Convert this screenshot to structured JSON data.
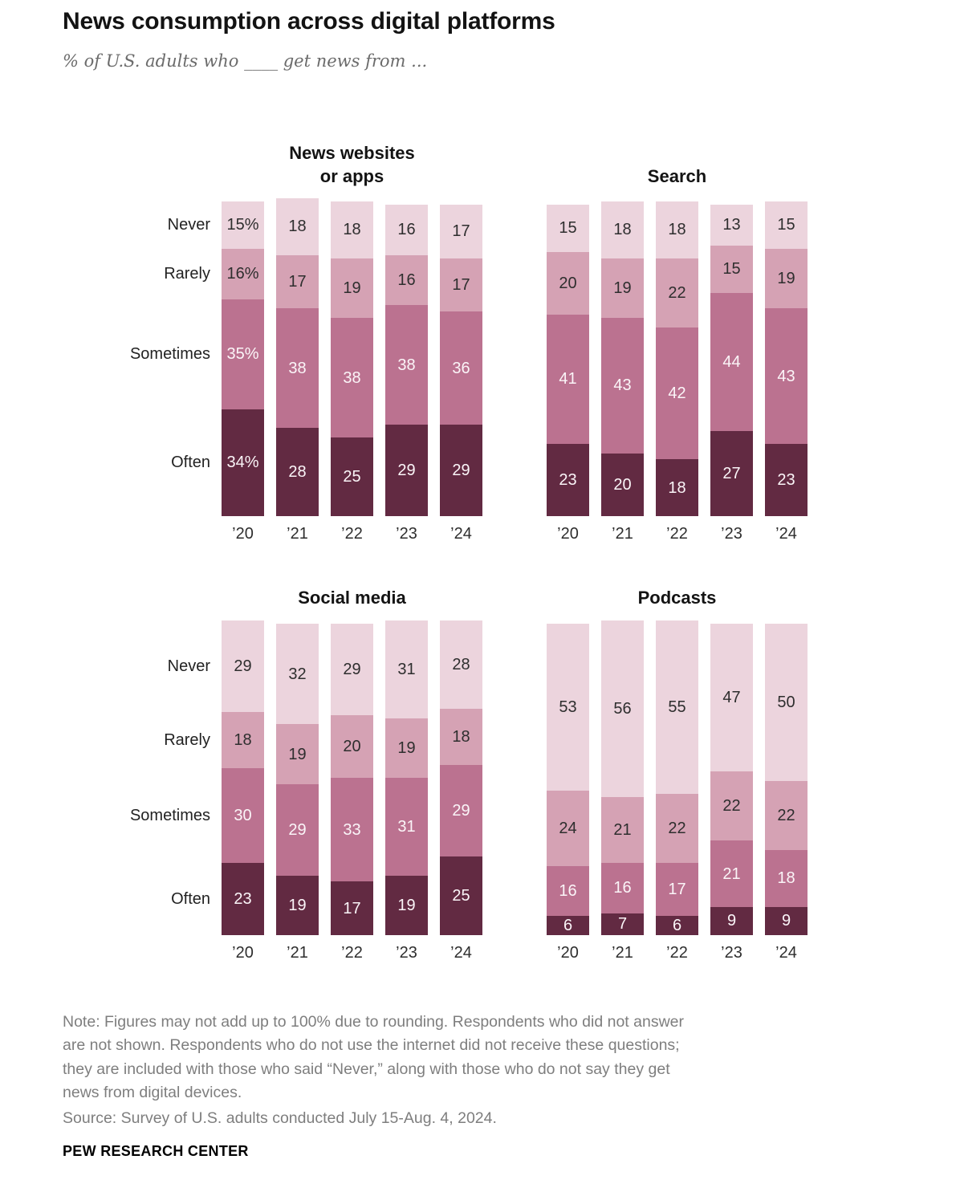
{
  "page": {
    "title": "News consumption across digital platforms",
    "subtitle": "% of U.S. adults who ____ get news from ...",
    "note_lines": [
      "Note: Figures may not add up to 100% due to rounding. Respondents who did not answer",
      "are not shown. Respondents who do not use the internet did not receive these questions;",
      "they are included with those who said “Never,” along with those who do not say they get",
      "news from digital devices."
    ],
    "source": "Source: Survey of U.S. adults conducted July 15-Aug. 4, 2024.",
    "footer": "PEW RESEARCH CENTER"
  },
  "colors": {
    "never": "#ecd4dd",
    "rarely": "#d5a2b4",
    "sometimes": "#bb7290",
    "often": "#622a42",
    "label_dark": "#2e2e2e",
    "label_light": "#fbf5f8"
  },
  "chart_data": [
    {
      "type": "bar",
      "stacked": true,
      "unit": "%",
      "title": "News websites or apps",
      "title_lines": [
        "News websites",
        "or apps"
      ],
      "categories": [
        "’20",
        "’21",
        "’22",
        "’23",
        "’24"
      ],
      "show_row_labels": true,
      "row_labels": [
        "Never",
        "Rarely",
        "Sometimes",
        "Often"
      ],
      "series": [
        {
          "name": "Never",
          "label_style": "dark",
          "values": [
            15,
            18,
            18,
            16,
            17
          ],
          "labels": [
            "15%",
            "18",
            "18",
            "16",
            "17"
          ]
        },
        {
          "name": "Rarely",
          "label_style": "dark",
          "values": [
            16,
            17,
            19,
            16,
            17
          ],
          "labels": [
            "16%",
            "17",
            "19",
            "16",
            "17"
          ]
        },
        {
          "name": "Sometimes",
          "label_style": "light",
          "values": [
            35,
            38,
            38,
            38,
            36
          ],
          "labels": [
            "35%",
            "38",
            "38",
            "38",
            "36"
          ]
        },
        {
          "name": "Often",
          "label_style": "light",
          "values": [
            34,
            28,
            25,
            29,
            29
          ],
          "labels": [
            "34%",
            "28",
            "25",
            "29",
            "29"
          ]
        }
      ]
    },
    {
      "type": "bar",
      "stacked": true,
      "unit": "%",
      "title": "Search",
      "title_lines": [
        "Search"
      ],
      "categories": [
        "’20",
        "’21",
        "’22",
        "’23",
        "’24"
      ],
      "show_row_labels": false,
      "row_labels": [
        "Never",
        "Rarely",
        "Sometimes",
        "Often"
      ],
      "series": [
        {
          "name": "Never",
          "label_style": "dark",
          "values": [
            15,
            18,
            18,
            13,
            15
          ]
        },
        {
          "name": "Rarely",
          "label_style": "dark",
          "values": [
            20,
            19,
            22,
            15,
            19
          ]
        },
        {
          "name": "Sometimes",
          "label_style": "light",
          "values": [
            41,
            43,
            42,
            44,
            43
          ]
        },
        {
          "name": "Often",
          "label_style": "light",
          "values": [
            23,
            20,
            18,
            27,
            23
          ]
        }
      ]
    },
    {
      "type": "bar",
      "stacked": true,
      "unit": "%",
      "title": "Social media",
      "title_lines": [
        "Social media"
      ],
      "categories": [
        "’20",
        "’21",
        "’22",
        "’23",
        "’24"
      ],
      "show_row_labels": true,
      "row_labels": [
        "Never",
        "Rarely",
        "Sometimes",
        "Often"
      ],
      "series": [
        {
          "name": "Never",
          "label_style": "dark",
          "values": [
            29,
            32,
            29,
            31,
            28
          ]
        },
        {
          "name": "Rarely",
          "label_style": "dark",
          "values": [
            18,
            19,
            20,
            19,
            18
          ]
        },
        {
          "name": "Sometimes",
          "label_style": "light",
          "values": [
            30,
            29,
            33,
            31,
            29
          ]
        },
        {
          "name": "Often",
          "label_style": "light",
          "values": [
            23,
            19,
            17,
            19,
            25
          ]
        }
      ]
    },
    {
      "type": "bar",
      "stacked": true,
      "unit": "%",
      "title": "Podcasts",
      "title_lines": [
        "Podcasts"
      ],
      "categories": [
        "’20",
        "’21",
        "’22",
        "’23",
        "’24"
      ],
      "show_row_labels": false,
      "row_labels": [
        "Never",
        "Rarely",
        "Sometimes",
        "Often"
      ],
      "series": [
        {
          "name": "Never",
          "label_style": "dark",
          "values": [
            53,
            56,
            55,
            47,
            50
          ]
        },
        {
          "name": "Rarely",
          "label_style": "dark",
          "values": [
            24,
            21,
            22,
            22,
            22
          ]
        },
        {
          "name": "Sometimes",
          "label_style": "light",
          "values": [
            16,
            16,
            17,
            21,
            18
          ]
        },
        {
          "name": "Often",
          "label_style": "light",
          "values": [
            6,
            7,
            6,
            9,
            9
          ]
        }
      ]
    }
  ]
}
